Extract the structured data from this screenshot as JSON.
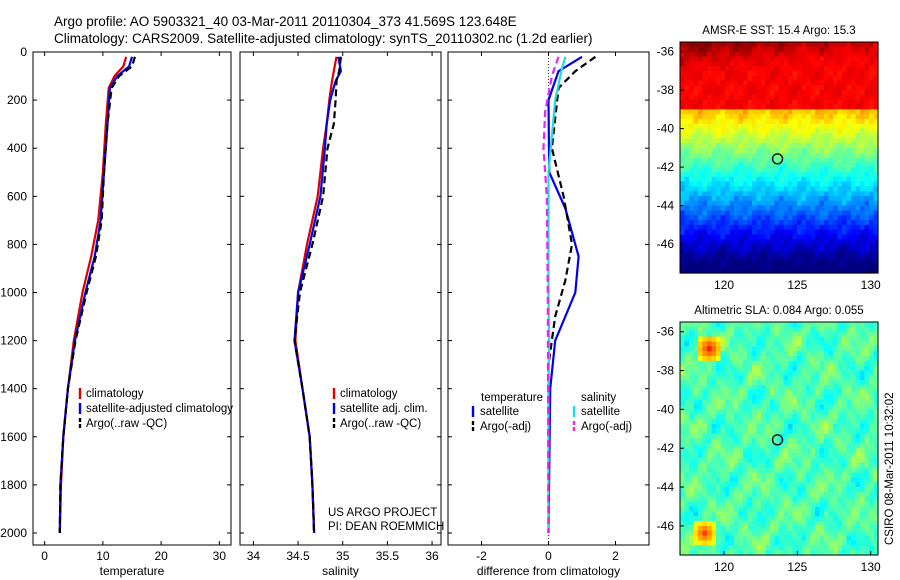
{
  "title": {
    "line1": "Argo profile: AO 5903321_40 03-Mar-2011 20110304_373 41.569S 123.648E",
    "line2": "Climatology: CARS2009. Satellite-adjusted climatology: synTS_20110302.nc (1.2d earlier)"
  },
  "depth_ticks": [
    "0",
    "200",
    "400",
    "600",
    "800",
    "1000",
    "1200",
    "1400",
    "1600",
    "1800",
    "2000"
  ],
  "credits": {
    "line1": "US ARGO PROJECT",
    "line2": "PI: DEAN ROEMMICH"
  },
  "stamp": "CSIRO 08-Mar-2011 10:32:02",
  "colors": {
    "red": "#dd0000",
    "blue": "#0000ee",
    "black": "#000000",
    "cyan": "#22dddd",
    "magenta": "#ee22ee"
  },
  "chart_data": [
    {
      "type": "line",
      "id": "temperature",
      "xlabel": "temperature",
      "xlim": [
        -2,
        32
      ],
      "ylim": [
        2050,
        0
      ],
      "xticks": [
        0,
        10,
        20,
        30
      ],
      "xtick_labels": [
        "0",
        "10",
        "20",
        "30"
      ],
      "series": [
        {
          "name": "climatology",
          "color": "red",
          "dash": false,
          "points": [
            [
              14,
              20
            ],
            [
              13.5,
              60
            ],
            [
              12,
              100
            ],
            [
              11,
              150
            ],
            [
              10.5,
              300
            ],
            [
              10,
              500
            ],
            [
              9.2,
              700
            ],
            [
              8,
              850
            ],
            [
              6.5,
              1000
            ],
            [
              5,
              1200
            ],
            [
              4,
              1400
            ],
            [
              3.2,
              1600
            ],
            [
              2.8,
              1800
            ],
            [
              2.6,
              2000
            ]
          ]
        },
        {
          "name": "satellite-adjusted climatology",
          "color": "blue",
          "dash": false,
          "points": [
            [
              15,
              20
            ],
            [
              14.5,
              60
            ],
            [
              12.5,
              100
            ],
            [
              11.2,
              150
            ],
            [
              10.8,
              300
            ],
            [
              10.2,
              500
            ],
            [
              9.6,
              700
            ],
            [
              8.6,
              850
            ],
            [
              7,
              1000
            ],
            [
              5.2,
              1200
            ],
            [
              4,
              1400
            ],
            [
              3.2,
              1600
            ],
            [
              2.7,
              1800
            ],
            [
              2.6,
              2000
            ]
          ]
        },
        {
          "name": "Argo(..raw -QC)",
          "color": "black",
          "dash": true,
          "points": [
            [
              15.5,
              20
            ],
            [
              15,
              60
            ],
            [
              12.8,
              100
            ],
            [
              11.5,
              150
            ],
            [
              10.8,
              300
            ],
            [
              10.2,
              500
            ],
            [
              9.8,
              700
            ],
            [
              8.8,
              850
            ],
            [
              7.2,
              1000
            ],
            [
              5.3,
              1200
            ],
            [
              4,
              1400
            ],
            [
              3.2,
              1600
            ],
            [
              2.7,
              1800
            ],
            [
              2.6,
              2000
            ]
          ]
        }
      ],
      "legend": [
        "climatology",
        "satellite-adjusted climatology",
        "Argo(..raw -QC)"
      ]
    },
    {
      "type": "line",
      "id": "salinity",
      "xlabel": "salinity",
      "xlim": [
        33.85,
        36.1
      ],
      "ylim": [
        2050,
        0
      ],
      "xticks": [
        34,
        34.5,
        35,
        35.5,
        36
      ],
      "xtick_labels": [
        "34",
        "34.5",
        "35",
        "35.5",
        "36"
      ],
      "series": [
        {
          "name": "climatology",
          "color": "red",
          "dash": false,
          "points": [
            [
              34.93,
              20
            ],
            [
              34.9,
              80
            ],
            [
              34.88,
              120
            ],
            [
              34.85,
              200
            ],
            [
              34.82,
              300
            ],
            [
              34.78,
              400
            ],
            [
              34.72,
              600
            ],
            [
              34.6,
              800
            ],
            [
              34.5,
              1000
            ],
            [
              34.47,
              1200
            ],
            [
              34.55,
              1400
            ],
            [
              34.63,
              1600
            ],
            [
              34.66,
              1800
            ],
            [
              34.68,
              2000
            ]
          ]
        },
        {
          "name": "satellite adj. clim.",
          "color": "blue",
          "dash": false,
          "points": [
            [
              34.95,
              20
            ],
            [
              34.98,
              80
            ],
            [
              34.92,
              120
            ],
            [
              34.86,
              200
            ],
            [
              34.82,
              300
            ],
            [
              34.8,
              400
            ],
            [
              34.75,
              600
            ],
            [
              34.63,
              800
            ],
            [
              34.5,
              1000
            ],
            [
              34.46,
              1200
            ],
            [
              34.55,
              1400
            ],
            [
              34.63,
              1600
            ],
            [
              34.66,
              1800
            ],
            [
              34.68,
              2000
            ]
          ]
        },
        {
          "name": "Argo(..raw -QC)",
          "color": "black",
          "dash": true,
          "points": [
            [
              34.98,
              20
            ],
            [
              34.96,
              80
            ],
            [
              34.93,
              120
            ],
            [
              34.92,
              200
            ],
            [
              34.9,
              300
            ],
            [
              34.83,
              400
            ],
            [
              34.78,
              600
            ],
            [
              34.66,
              800
            ],
            [
              34.52,
              1000
            ],
            [
              34.46,
              1200
            ],
            [
              34.55,
              1400
            ],
            [
              34.63,
              1600
            ],
            [
              34.66,
              1800
            ],
            [
              34.68,
              2000
            ]
          ]
        }
      ],
      "legend": [
        "climatology",
        "satellite adj. clim.",
        "Argo(..raw -QC)"
      ]
    },
    {
      "type": "line",
      "id": "difference",
      "xlabel": "difference from climatology",
      "xlim": [
        -3,
        3
      ],
      "ylim": [
        2050,
        0
      ],
      "xticks": [
        -2,
        0,
        2
      ],
      "xtick_labels": [
        "-2",
        "0",
        "2"
      ],
      "series": [
        {
          "name": "temperature satellite",
          "color": "blue",
          "dash": false,
          "points": [
            [
              1,
              20
            ],
            [
              0.3,
              80
            ],
            [
              0,
              200
            ],
            [
              0.02,
              500
            ],
            [
              0.5,
              650
            ],
            [
              0.9,
              850
            ],
            [
              0.8,
              1000
            ],
            [
              0.5,
              1100
            ],
            [
              0.2,
              1200
            ],
            [
              0.05,
              1400
            ],
            [
              0,
              2000
            ]
          ]
        },
        {
          "name": "temperature Argo(-adj)",
          "color": "black",
          "dash": true,
          "points": [
            [
              1.4,
              20
            ],
            [
              0.8,
              80
            ],
            [
              0.3,
              150
            ],
            [
              0.1,
              400
            ],
            [
              0.45,
              600
            ],
            [
              0.7,
              800
            ],
            [
              0.5,
              950
            ],
            [
              0.2,
              1100
            ],
            [
              0,
              1300
            ],
            [
              0,
              2000
            ]
          ]
        },
        {
          "name": "salinity satellite",
          "color": "cyan",
          "dash": false,
          "points": [
            [
              0.5,
              20
            ],
            [
              0.4,
              70
            ],
            [
              0.2,
              200
            ],
            [
              0,
              500
            ],
            [
              0,
              1000
            ],
            [
              0.02,
              1200
            ],
            [
              0,
              1400
            ],
            [
              0,
              2000
            ]
          ]
        },
        {
          "name": "salinity Argo(-adj)",
          "color": "magenta",
          "dash": true,
          "points": [
            [
              0.3,
              20
            ],
            [
              0.1,
              100
            ],
            [
              -0.1,
              250
            ],
            [
              -0.15,
              400
            ],
            [
              -0.05,
              600
            ],
            [
              -0.02,
              1000
            ],
            [
              0,
              2000
            ]
          ]
        }
      ],
      "legend_headers": [
        "temperature",
        "salinity"
      ],
      "legend": [
        "satellite",
        "Argo(-adj)",
        "satellite",
        "Argo(-adj)"
      ]
    },
    {
      "type": "heatmap",
      "id": "sst",
      "title": "AMSR-E SST: 15.4 Argo: 15.3",
      "xlim": [
        117,
        130.5
      ],
      "ylim": [
        -47.5,
        -35.5
      ],
      "xticks": [
        120,
        125,
        130
      ],
      "xtick_labels": [
        "120",
        "125",
        "130"
      ],
      "yticks": [
        -36,
        -38,
        -40,
        -42,
        -44,
        -46
      ],
      "ytick_labels": [
        "-36",
        "-38",
        "-40",
        "-42",
        "-44",
        "-46"
      ],
      "marker": [
        123.65,
        -41.57
      ]
    },
    {
      "type": "heatmap",
      "id": "sla",
      "title": "Altimetric SLA: 0.084 Argo: 0.055",
      "xlim": [
        117,
        130.5
      ],
      "ylim": [
        -47.5,
        -35.5
      ],
      "xticks": [
        120,
        125,
        130
      ],
      "xtick_labels": [
        "120",
        "125",
        "130"
      ],
      "yticks": [
        -36,
        -38,
        -40,
        -42,
        -44,
        -46
      ],
      "ytick_labels": [
        "-36",
        "-38",
        "-40",
        "-42",
        "-44",
        "-46"
      ],
      "marker": [
        123.65,
        -41.57
      ]
    }
  ]
}
